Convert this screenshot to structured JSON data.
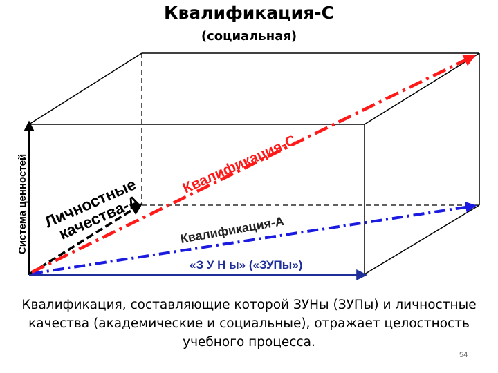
{
  "title": "Квалификация-С",
  "subtitle": "(социальная)",
  "labels": {
    "axis_values": "Система ценностей",
    "personal_line1": "Личностные",
    "personal_line2": "качества-А",
    "qual_c": "Квалификация-С",
    "qual_a": "Квалификация-А",
    "zuny": "«З У Н ы» («ЗУПы»)"
  },
  "caption": {
    "line1": "Квалификация, составляющие которой ЗУНы (ЗУПы) и личностные",
    "line2": "качества (академические и социальные), отражает целостность",
    "line3": "учебного процесса."
  },
  "page_number": "54",
  "colors": {
    "red": "#ff1a1a",
    "blue": "#1a1ae0",
    "navy": "#1f2f9a",
    "black": "#000000"
  }
}
